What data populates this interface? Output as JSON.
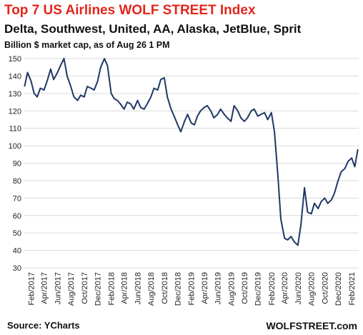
{
  "chart_data": {
    "type": "line",
    "title": "Top 7 US Airlines WOLF STREET Index",
    "subtitle": "Delta, Southwest, United, AA, Alaska, JetBlue, Sprit",
    "ylabel_note": "Billion $ market cap, as of Aug 26 1 PM",
    "xlabel": "",
    "ylabel": "",
    "ylim": [
      30,
      150
    ],
    "yticks": [
      30,
      40,
      50,
      60,
      70,
      80,
      90,
      100,
      110,
      120,
      130,
      140,
      150
    ],
    "xticks": [
      "Feb/2017",
      "Apr/2017",
      "Jun/2017",
      "Aug/2017",
      "Oct/2017",
      "Dec/2017",
      "Feb/2018",
      "Apr/2018",
      "Jun/2018",
      "Aug/2018",
      "Oct/2018",
      "Dec/2018",
      "Feb/2019",
      "Apr/2019",
      "Jun/2019",
      "Aug/2019",
      "Oct/2019",
      "Dec/2019",
      "Feb/2020",
      "Apr/2020",
      "Jun/2020",
      "Aug/2020",
      "Oct/2020",
      "Dec/2020",
      "Feb/2021"
    ],
    "grid": true,
    "line_color": "#1f3864",
    "series": [
      {
        "x": [
          "2017-01-02",
          "2017-01-16",
          "2017-02-01",
          "2017-02-15",
          "2017-03-01",
          "2017-03-15",
          "2017-04-01",
          "2017-04-15",
          "2017-05-01",
          "2017-05-15",
          "2017-06-01",
          "2017-06-15",
          "2017-07-01",
          "2017-07-15",
          "2017-08-01",
          "2017-08-15",
          "2017-09-01",
          "2017-09-15",
          "2017-10-01",
          "2017-10-15",
          "2017-11-01",
          "2017-11-15",
          "2017-12-01",
          "2017-12-15",
          "2018-01-01",
          "2018-01-15",
          "2018-02-01",
          "2018-02-15",
          "2018-03-01",
          "2018-03-15",
          "2018-04-01",
          "2018-04-15",
          "2018-05-01",
          "2018-05-15",
          "2018-06-01",
          "2018-06-15",
          "2018-07-01",
          "2018-07-15",
          "2018-08-01",
          "2018-08-15",
          "2018-09-01",
          "2018-09-15",
          "2018-10-01",
          "2018-10-15",
          "2018-11-01",
          "2018-11-15",
          "2018-12-01",
          "2018-12-15",
          "2019-01-01",
          "2019-01-15",
          "2019-02-01",
          "2019-02-15",
          "2019-03-01",
          "2019-03-15",
          "2019-04-01",
          "2019-04-15",
          "2019-05-01",
          "2019-05-15",
          "2019-06-01",
          "2019-06-15",
          "2019-07-01",
          "2019-07-15",
          "2019-08-01",
          "2019-08-15",
          "2019-09-01",
          "2019-09-15",
          "2019-10-01",
          "2019-10-15",
          "2019-11-01",
          "2019-11-15",
          "2019-12-01",
          "2019-12-15",
          "2020-01-01",
          "2020-01-15",
          "2020-02-01",
          "2020-02-15",
          "2020-03-01",
          "2020-03-15",
          "2020-04-01",
          "2020-04-15",
          "2020-05-01",
          "2020-05-15",
          "2020-06-01",
          "2020-06-15",
          "2020-07-01",
          "2020-07-15",
          "2020-08-01",
          "2020-08-15",
          "2020-09-01",
          "2020-09-15",
          "2020-10-01",
          "2020-10-15",
          "2020-11-01",
          "2020-11-15",
          "2020-12-01",
          "2020-12-15",
          "2021-01-01",
          "2021-01-15",
          "2021-02-01",
          "2021-02-15",
          "2021-03-01"
        ],
        "values": [
          134,
          142,
          137,
          130,
          128,
          133,
          132,
          137,
          144,
          138,
          142,
          146,
          150,
          140,
          134,
          128,
          126,
          129,
          128,
          134,
          133,
          132,
          137,
          145,
          150,
          146,
          130,
          127,
          126,
          124,
          121,
          125,
          124,
          121,
          126,
          122,
          121,
          124,
          128,
          133,
          132,
          138,
          139,
          128,
          121,
          117,
          112,
          108,
          114,
          118,
          113,
          112,
          117,
          120,
          122,
          123,
          120,
          116,
          118,
          121,
          118,
          116,
          114,
          123,
          120,
          116,
          114,
          116,
          120,
          121,
          117,
          118,
          119,
          115,
          119,
          108,
          84,
          58,
          47,
          46,
          48,
          45,
          43,
          55,
          76,
          62,
          61,
          67,
          64,
          68,
          70,
          67,
          69,
          73,
          80,
          85,
          87,
          91,
          93,
          88,
          98
        ]
      }
    ]
  },
  "footer": {
    "source": "Source: YCharts",
    "brand": "WOLFSTREET.com"
  }
}
